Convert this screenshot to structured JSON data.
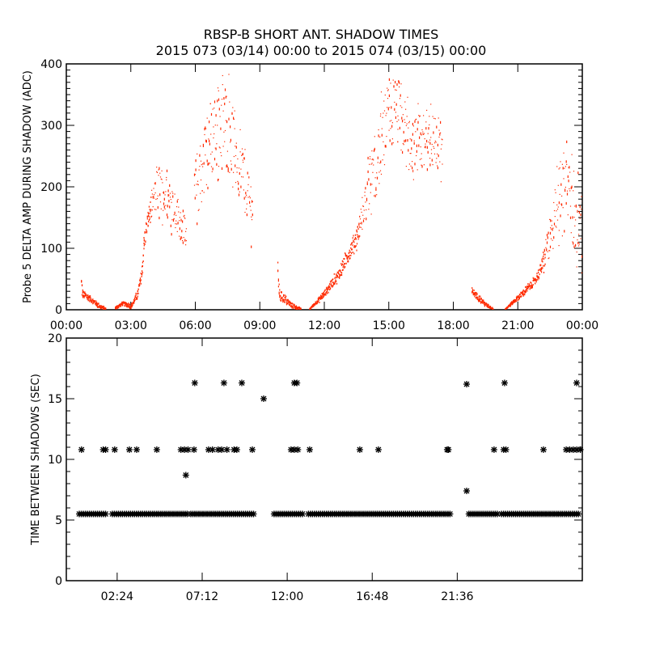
{
  "chart_data": [
    {
      "type": "scatter",
      "title": "RBSP-B SHORT ANT. SHADOW TIMES",
      "subtitle": "2015 073 (03/14) 00:00 to 2015 074 (03/15) 00:00",
      "xlabel": "",
      "ylabel": "Probe 5 DELTA AMP DURING SHADOW (ADC)",
      "xlim": [
        0,
        24
      ],
      "ylim": [
        0,
        400
      ],
      "x_units": "hours",
      "xticks": [
        0,
        3,
        6,
        9,
        12,
        15,
        18,
        21,
        24
      ],
      "xtick_labels": [
        "00:00",
        "03:00",
        "06:00",
        "09:00",
        "12:00",
        "15:00",
        "18:00",
        "21:00",
        "00:00"
      ],
      "yticks": [
        0,
        100,
        200,
        300,
        400
      ],
      "ytick_labels": [
        "0",
        "100",
        "200",
        "300",
        "400"
      ],
      "marker_color": "#ff2a00",
      "series_note": "segments of [hour, center ADC, spread ADC]",
      "segments": [
        [
          [
            0.68,
            40,
            20
          ],
          [
            0.75,
            25,
            6
          ],
          [
            1.0,
            20,
            5
          ],
          [
            1.3,
            12,
            4
          ],
          [
            1.6,
            4,
            3
          ],
          [
            1.84,
            1,
            1
          ]
        ],
        [
          [
            2.26,
            3,
            2
          ],
          [
            2.6,
            10,
            3
          ],
          [
            3.0,
            6,
            3
          ],
          [
            3.3,
            25,
            6
          ],
          [
            3.5,
            60,
            10
          ],
          [
            3.6,
            110,
            15
          ],
          [
            3.8,
            150,
            15
          ],
          [
            4.06,
            180,
            25
          ],
          [
            4.3,
            200,
            40
          ],
          [
            4.6,
            185,
            35
          ],
          [
            4.9,
            175,
            35
          ],
          [
            5.2,
            150,
            30
          ],
          [
            5.57,
            120,
            25
          ]
        ],
        [
          [
            5.94,
            190,
            50
          ],
          [
            6.32,
            230,
            60
          ],
          [
            6.7,
            280,
            65
          ],
          [
            7.07,
            300,
            70
          ],
          [
            7.45,
            300,
            70
          ],
          [
            7.83,
            260,
            65
          ],
          [
            8.2,
            220,
            55
          ],
          [
            8.58,
            170,
            45
          ],
          [
            8.65,
            165,
            40
          ]
        ],
        [
          [
            9.82,
            55,
            15
          ],
          [
            9.9,
            25,
            8
          ],
          [
            10.2,
            15,
            5
          ],
          [
            10.5,
            6,
            4
          ],
          [
            10.9,
            1,
            1
          ]
        ],
        [
          [
            11.3,
            1,
            1
          ],
          [
            11.96,
            25,
            5
          ],
          [
            12.7,
            60,
            8
          ],
          [
            13.5,
            120,
            15
          ],
          [
            13.8,
            160,
            25
          ],
          [
            14.2,
            220,
            50
          ],
          [
            14.6,
            260,
            60
          ],
          [
            15.0,
            320,
            60
          ],
          [
            15.4,
            320,
            60
          ],
          [
            15.7,
            290,
            55
          ],
          [
            16.1,
            260,
            50
          ],
          [
            16.5,
            270,
            50
          ],
          [
            16.9,
            280,
            50
          ],
          [
            17.2,
            270,
            50
          ],
          [
            17.5,
            250,
            50
          ]
        ],
        [
          [
            18.85,
            30,
            6
          ],
          [
            19.2,
            18,
            4
          ],
          [
            19.5,
            8,
            3
          ],
          [
            19.86,
            1,
            1
          ]
        ],
        [
          [
            20.4,
            1,
            1
          ],
          [
            21.0,
            20,
            4
          ],
          [
            21.75,
            45,
            6
          ],
          [
            22.1,
            70,
            10
          ],
          [
            22.5,
            120,
            35
          ],
          [
            22.9,
            180,
            55
          ],
          [
            23.25,
            220,
            60
          ],
          [
            23.6,
            150,
            60
          ],
          [
            24.0,
            130,
            50
          ]
        ]
      ]
    },
    {
      "type": "scatter",
      "title": "",
      "xlabel": "",
      "ylabel": "TIME BETWEEN SHADOWS (SEC)",
      "xlim": [
        -0.47,
        28.66
      ],
      "ylim": [
        0,
        20
      ],
      "x_units": "hours (as labeled)",
      "xticks": [
        2.4,
        7.2,
        12.0,
        16.8,
        21.6
      ],
      "xtick_labels": [
        "02:24",
        "07:12",
        "12:00",
        "16:48",
        "21:36"
      ],
      "yticks": [
        0,
        5,
        10,
        15,
        20
      ],
      "ytick_labels": [
        "0",
        "5",
        "10",
        "15",
        "20"
      ],
      "marker": "asterisk",
      "marker_color": "#000000",
      "bands": [
        {
          "from": 0.26,
          "to": 1.85,
          "value": 5.5
        },
        {
          "from": 2.13,
          "to": 6.42,
          "value": 5.5
        },
        {
          "from": 6.56,
          "to": 10.2,
          "value": 5.5
        },
        {
          "from": 11.26,
          "to": 12.9,
          "value": 5.5
        },
        {
          "from": 13.2,
          "to": 21.2,
          "value": 5.5
        },
        {
          "from": 22.26,
          "to": 23.86,
          "value": 5.5
        },
        {
          "from": 24.1,
          "to": 28.55,
          "value": 5.5
        }
      ],
      "points": [
        [
          0.39,
          10.8
        ],
        [
          1.61,
          10.8
        ],
        [
          1.75,
          10.8
        ],
        [
          2.26,
          10.8
        ],
        [
          3.09,
          10.8
        ],
        [
          3.5,
          10.8
        ],
        [
          4.64,
          10.8
        ],
        [
          6.0,
          10.8
        ],
        [
          6.2,
          10.8
        ],
        [
          6.4,
          10.8
        ],
        [
          6.28,
          8.7
        ],
        [
          6.74,
          10.8
        ],
        [
          6.78,
          16.3
        ],
        [
          7.56,
          10.8
        ],
        [
          7.78,
          10.8
        ],
        [
          8.43,
          16.3
        ],
        [
          8.1,
          10.8
        ],
        [
          8.3,
          10.8
        ],
        [
          8.6,
          10.8
        ],
        [
          9.0,
          10.8
        ],
        [
          9.44,
          16.3
        ],
        [
          9.16,
          10.8
        ],
        [
          10.03,
          10.8
        ],
        [
          10.67,
          15.0
        ],
        [
          12.22,
          10.8
        ],
        [
          12.4,
          10.8
        ],
        [
          12.6,
          10.8
        ],
        [
          12.4,
          16.3
        ],
        [
          12.55,
          16.3
        ],
        [
          13.27,
          10.8
        ],
        [
          16.1,
          10.8
        ],
        [
          17.15,
          10.8
        ],
        [
          21.03,
          10.8
        ],
        [
          21.1,
          10.8
        ],
        [
          22.13,
          16.2
        ],
        [
          22.13,
          7.4
        ],
        [
          23.68,
          10.8
        ],
        [
          24.22,
          10.8
        ],
        [
          24.35,
          10.8
        ],
        [
          24.27,
          16.3
        ],
        [
          26.47,
          10.8
        ],
        [
          27.75,
          10.8
        ],
        [
          27.95,
          10.8
        ],
        [
          28.15,
          10.8
        ],
        [
          28.35,
          10.8
        ],
        [
          28.55,
          10.8
        ],
        [
          28.34,
          16.3
        ]
      ]
    }
  ]
}
